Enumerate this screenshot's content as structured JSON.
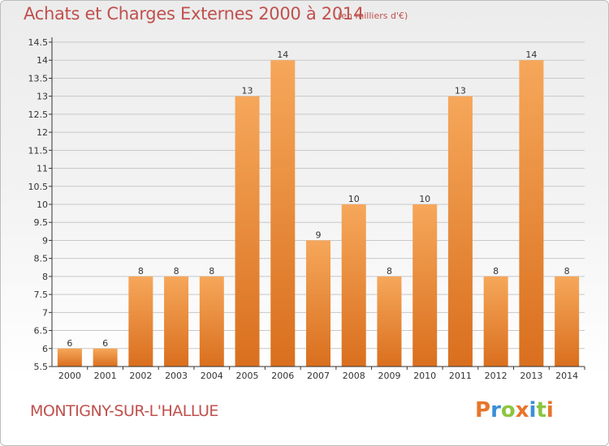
{
  "header": {
    "title": "Achats et Charges Externes 2000 à 2014",
    "subtitle": "(en milliers d'€)"
  },
  "footer": {
    "commune": "MONTIGNY-SUR-L'HALLUE",
    "logo_text": "Proxiti",
    "logo_colors": [
      "#e8752a",
      "#3a8fd8",
      "#8ac63f",
      "#e8752a",
      "#3a8fd8",
      "#8ac63f",
      "#e8752a"
    ]
  },
  "colors": {
    "bar_top": "#f6a75a",
    "bar_bottom": "#d96f1e",
    "axis": "#333333",
    "grid": "#c8c8c8",
    "title": "#c0504d"
  },
  "chart_data": {
    "type": "bar",
    "title": "Achats et Charges Externes 2000 à 2014",
    "categories": [
      "2000",
      "2001",
      "2002",
      "2003",
      "2004",
      "2005",
      "2006",
      "2007",
      "2008",
      "2009",
      "2010",
      "2011",
      "2012",
      "2013",
      "2014"
    ],
    "values": [
      6,
      6,
      8,
      8,
      8,
      13,
      14,
      9,
      10,
      8,
      10,
      13,
      8,
      14,
      8
    ],
    "ylim": [
      5.5,
      14.5
    ],
    "yticks": [
      "5.5",
      "6",
      "6.5",
      "7",
      "7.5",
      "8",
      "8.5",
      "9",
      "9.5",
      "10",
      "10.5",
      "11",
      "11.5",
      "12",
      "12.5",
      "13",
      "13.5",
      "14",
      "14.5"
    ],
    "xlabel": "",
    "ylabel": "",
    "grid": true,
    "data_labels": true
  }
}
